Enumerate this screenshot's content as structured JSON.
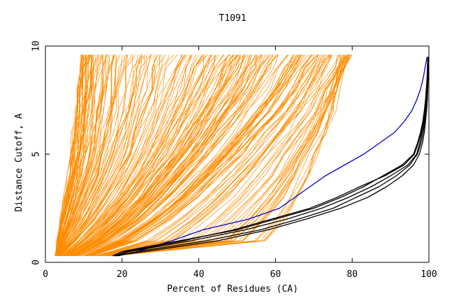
{
  "chart_data": {
    "type": "line",
    "title": "T1091",
    "xlabel": "Percent of Residues (CA)",
    "ylabel": "Distance Cutoff, A",
    "xlim": [
      0,
      100
    ],
    "ylim": [
      0,
      10
    ],
    "x_ticks": [
      0,
      20,
      40,
      60,
      80,
      100
    ],
    "y_ticks": [
      0,
      5,
      10
    ],
    "x_tick_labels": [
      "0",
      "20",
      "40",
      "60",
      "80",
      "100"
    ],
    "y_tick_labels": [
      "0",
      "5",
      "10"
    ],
    "grid": false,
    "colors": {
      "orange": "#ff8c00",
      "blue": "#0000cc",
      "black": "#000000"
    },
    "series_groups": [
      {
        "group": "orange",
        "color": "#ff8c00",
        "count": 230,
        "y": [
          0.3,
          1.0,
          2.0,
          3.0,
          4.0,
          5.0,
          6.0,
          7.0,
          8.0,
          9.0,
          9.6
        ],
        "x_start_range": [
          2.5,
          19.0
        ],
        "x_end_range": [
          7.0,
          80.0
        ],
        "representative_x": [
          [
            2.6,
            3.0,
            4.0,
            5.0,
            6.0,
            6.8,
            7.4,
            7.9,
            8.3,
            8.6,
            8.8
          ],
          [
            3.0,
            4.5,
            7.0,
            9.0,
            11.0,
            12.5,
            13.5,
            14.5,
            15.0,
            15.5,
            16.0
          ],
          [
            4.0,
            8.0,
            13.0,
            17.0,
            20.5,
            23.5,
            26.0,
            28.0,
            30.0,
            31.5,
            33.0
          ],
          [
            6.0,
            12.0,
            18.0,
            23.0,
            27.0,
            31.0,
            34.5,
            37.5,
            40.5,
            43.0,
            45.0
          ],
          [
            8.0,
            16.0,
            24.0,
            30.0,
            35.0,
            40.0,
            44.0,
            48.0,
            52.0,
            55.0,
            57.0
          ],
          [
            12.0,
            22.0,
            31.0,
            38.0,
            44.0,
            50.0,
            55.0,
            60.0,
            64.0,
            68.0,
            70.0
          ],
          [
            16.0,
            40.0,
            47.0,
            53.0,
            58.0,
            62.0,
            66.0,
            70.0,
            73.0,
            76.0,
            78.0
          ],
          [
            18.0,
            60.0,
            65.0,
            68.0,
            70.0,
            72.0,
            74.0,
            76.0,
            77.0,
            78.0,
            79.5
          ]
        ]
      }
    ],
    "series": [
      {
        "color": "#0000cc",
        "y": [
          0.3,
          0.5,
          1.0,
          1.5,
          2.0,
          2.5,
          3.0,
          3.5,
          4.0,
          4.5,
          5.0,
          5.5,
          6.0,
          6.5,
          7.0,
          7.5,
          8.0,
          8.5,
          9.0,
          9.5
        ],
        "x": [
          19.0,
          24.0,
          33.0,
          41.0,
          53.0,
          61.0,
          65.0,
          69.0,
          73.0,
          78.0,
          83.0,
          87.0,
          91.0,
          93.5,
          95.5,
          96.8,
          97.8,
          98.5,
          99.0,
          99.5
        ]
      },
      {
        "color": "#000000",
        "y": [
          0.3,
          0.5,
          1.0,
          1.5,
          2.0,
          2.5,
          3.0,
          3.5,
          4.0,
          4.5,
          5.0,
          5.5,
          6.0,
          6.5,
          7.0,
          7.5,
          8.0,
          8.5,
          9.0,
          9.5
        ],
        "x": [
          17.5,
          20.0,
          35.0,
          50.0,
          60.0,
          70.0,
          77.0,
          83.0,
          88.0,
          93.0,
          96.0,
          97.0,
          97.8,
          98.4,
          98.8,
          99.1,
          99.3,
          99.5,
          99.6,
          99.7
        ]
      },
      {
        "color": "#000000",
        "y": [
          0.3,
          0.5,
          1.0,
          1.5,
          2.0,
          2.5,
          3.0,
          3.5,
          4.0,
          4.5,
          5.0,
          5.5,
          6.0,
          6.5,
          7.0,
          7.5,
          8.0,
          8.5,
          9.0,
          9.5
        ],
        "x": [
          18.0,
          22.0,
          38.0,
          52.0,
          63.0,
          72.0,
          79.0,
          85.0,
          90.0,
          94.5,
          96.8,
          97.6,
          98.2,
          98.7,
          99.0,
          99.3,
          99.5,
          99.6,
          99.7,
          99.8
        ]
      },
      {
        "color": "#000000",
        "y": [
          0.3,
          0.5,
          1.0,
          1.5,
          2.0,
          2.5,
          3.0,
          3.5,
          4.0,
          4.5,
          5.0,
          5.5,
          6.0,
          6.5,
          7.0,
          7.5,
          8.0,
          8.5,
          9.0,
          9.5
        ],
        "x": [
          18.5,
          24.0,
          42.0,
          56.0,
          66.0,
          75.0,
          81.0,
          87.0,
          91.5,
          95.0,
          97.0,
          97.9,
          98.5,
          98.9,
          99.2,
          99.4,
          99.6,
          99.7,
          99.8,
          99.9
        ]
      },
      {
        "color": "#000000",
        "y": [
          0.3,
          0.5,
          1.0,
          1.5,
          2.0,
          2.5,
          3.0,
          3.5,
          4.0,
          4.5,
          5.0,
          5.5,
          6.0,
          6.5,
          7.0,
          7.5,
          8.0,
          8.5,
          9.0,
          9.5
        ],
        "x": [
          18.0,
          26.0,
          45.0,
          58.0,
          68.0,
          77.0,
          84.0,
          89.0,
          93.0,
          96.0,
          97.5,
          98.3,
          98.8,
          99.1,
          99.4,
          99.6,
          99.7,
          99.8,
          99.9,
          99.9
        ]
      },
      {
        "color": "#000000",
        "y": [
          0.3,
          0.5,
          1.0,
          1.5,
          2.0,
          2.5,
          3.0,
          3.5,
          4.0,
          4.5,
          5.0,
          5.5,
          6.0,
          6.5,
          7.0,
          7.5,
          8.0,
          8.5,
          9.0,
          9.5
        ],
        "x": [
          18.2,
          21.0,
          36.0,
          49.0,
          59.0,
          69.0,
          76.0,
          82.0,
          88.5,
          93.5,
          96.2,
          97.2,
          98.0,
          98.6,
          99.0,
          99.3,
          99.5,
          99.6,
          99.7,
          99.8
        ]
      }
    ]
  }
}
